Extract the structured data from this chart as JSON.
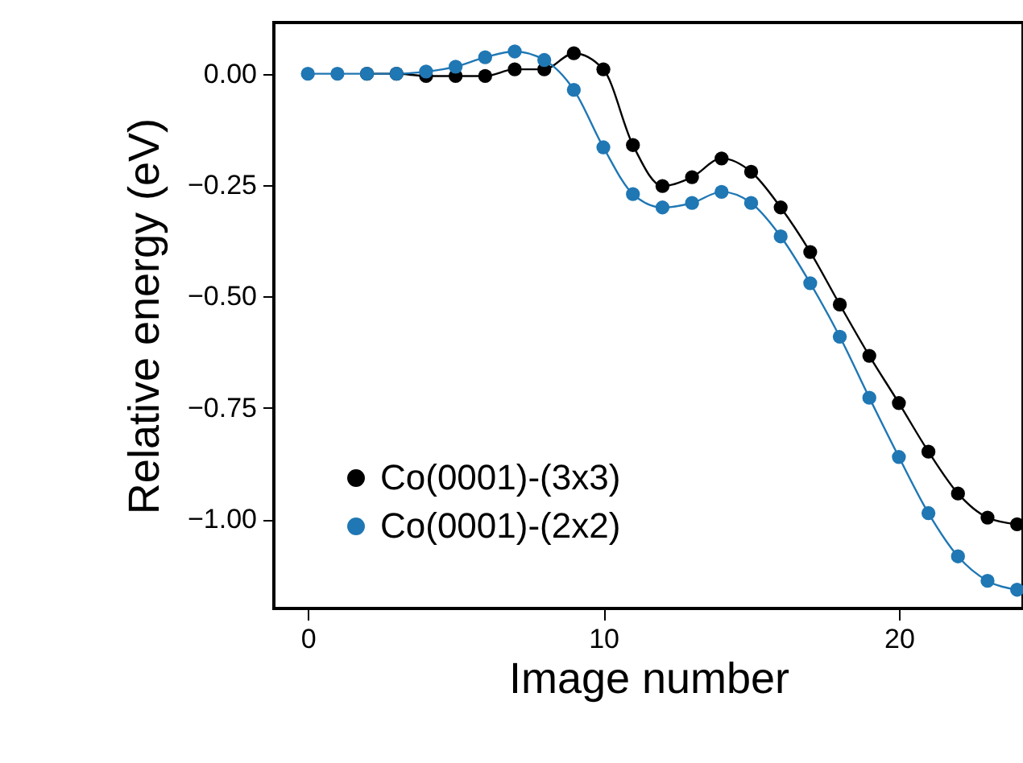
{
  "chart_data": {
    "type": "line",
    "xlabel": "Image number",
    "ylabel": "Relative energy (eV)",
    "x": [
      0,
      1,
      2,
      3,
      4,
      5,
      6,
      7,
      8,
      9,
      10,
      11,
      12,
      13,
      14,
      15,
      16,
      17,
      18,
      19,
      20,
      21,
      22,
      23,
      24
    ],
    "series": [
      {
        "name": "Co(0001)-(3x3)",
        "color": "#000000",
        "values": [
          null,
          null,
          0,
          0,
          -0.005,
          -0.005,
          -0.005,
          0.01,
          0.01,
          0.046,
          0.01,
          -0.16,
          -0.252,
          -0.232,
          -0.19,
          -0.22,
          -0.3,
          -0.4,
          -0.518,
          -0.633,
          -0.739,
          -0.848,
          -0.942,
          -0.996,
          -1.011
        ]
      },
      {
        "name": "Co(0001)-(2x2)",
        "color": "#1f77b4",
        "values": [
          0,
          0,
          0,
          0,
          0.005,
          0.016,
          0.037,
          0.05,
          0.031,
          -0.036,
          -0.165,
          -0.27,
          -0.3,
          -0.29,
          -0.265,
          -0.29,
          -0.365,
          -0.47,
          -0.59,
          -0.727,
          -0.86,
          -0.986,
          -1.083,
          -1.138,
          -1.158
        ]
      }
    ],
    "xlim": [
      -1.15,
      24.2
    ],
    "xticks": [
      0,
      10,
      20
    ],
    "ylim": [
      -1.2,
      0.115
    ],
    "yticks": [
      {
        "value": 0,
        "label": "0.00"
      },
      {
        "value": -0.25,
        "label": "−0.25"
      },
      {
        "value": -0.5,
        "label": "−0.50"
      },
      {
        "value": -0.75,
        "label": "−0.75"
      },
      {
        "value": -1.0,
        "label": "−1.00"
      }
    ],
    "grid": false,
    "legend": "bottom left",
    "marker": "circle",
    "line_style": "solid"
  }
}
